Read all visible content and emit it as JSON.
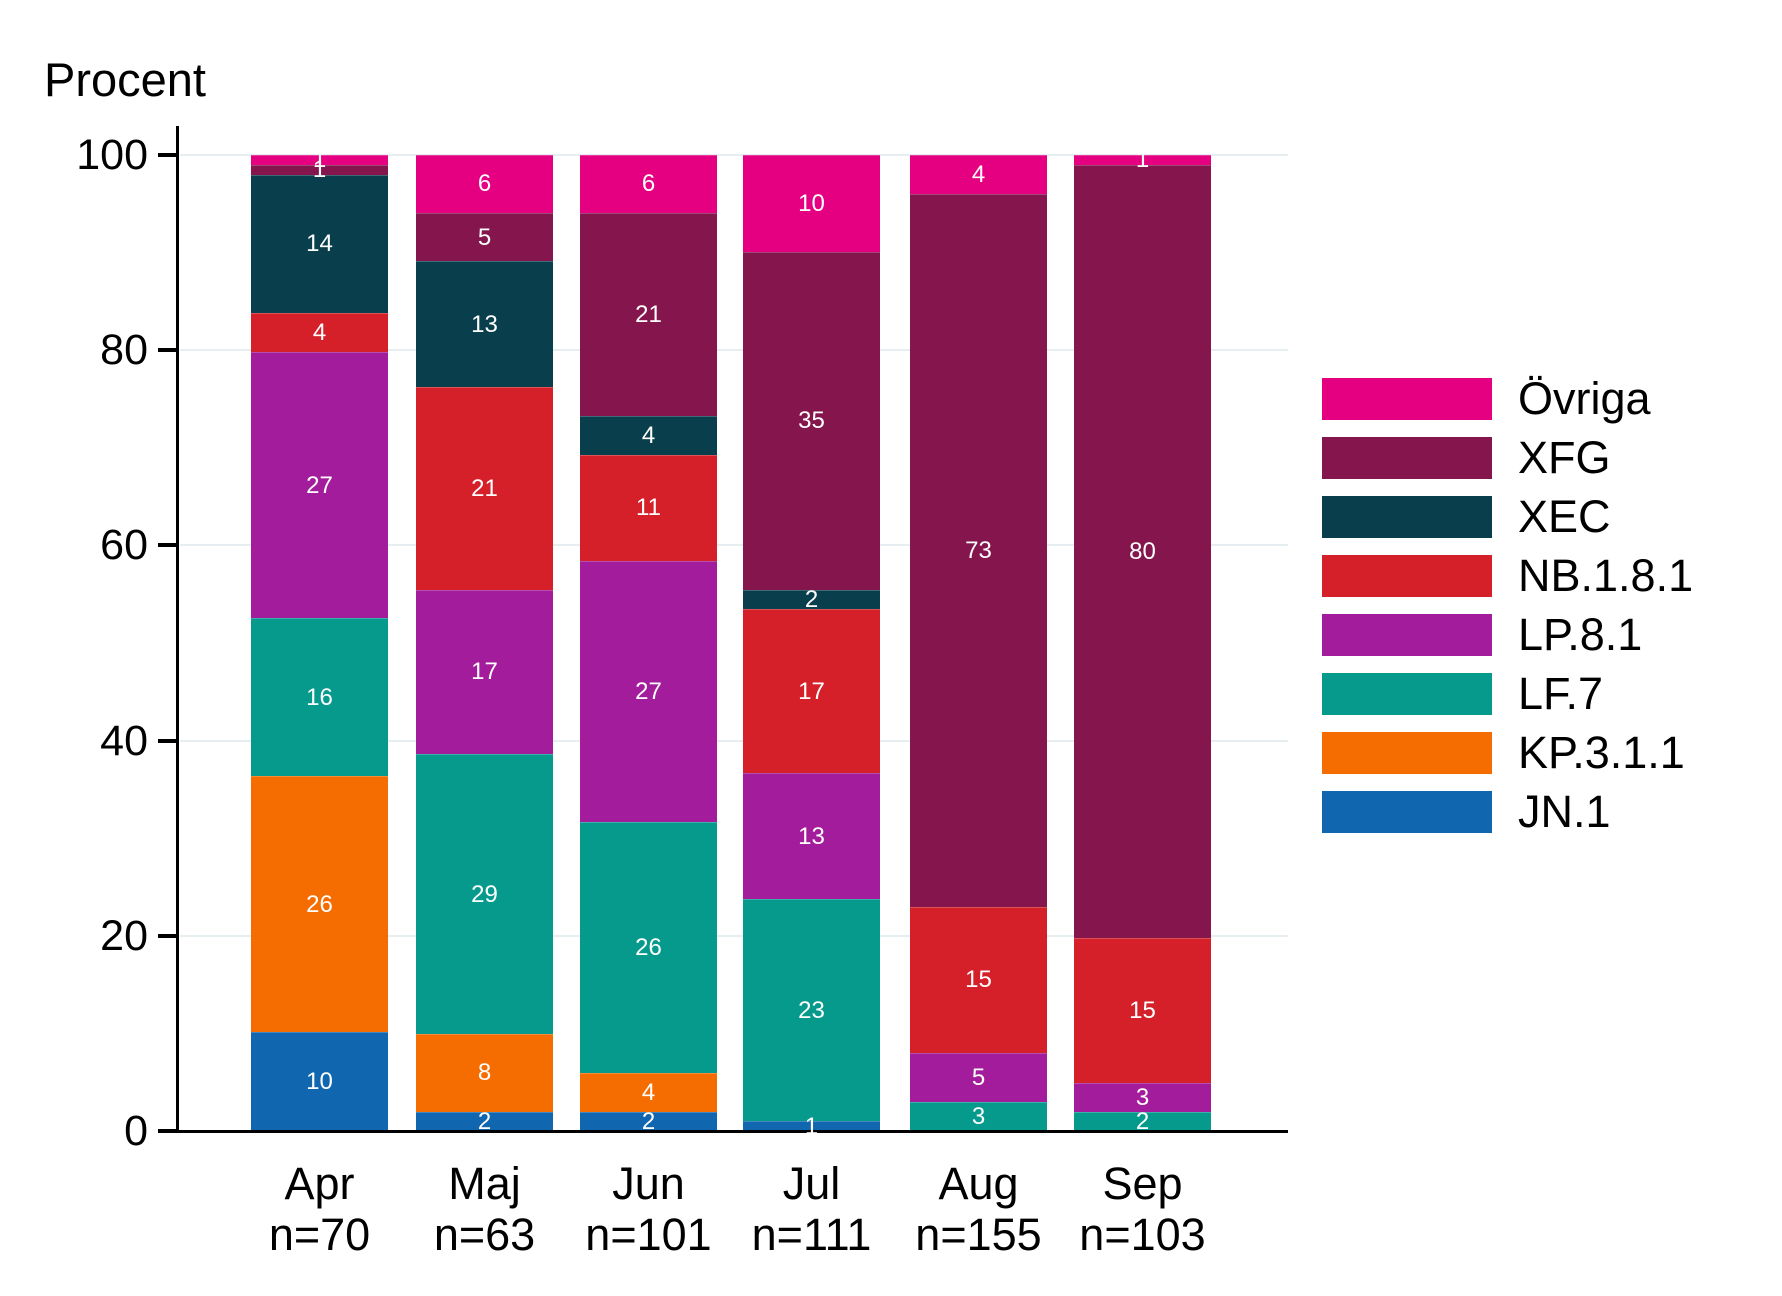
{
  "chart_data": {
    "type": "bar",
    "stacked": true,
    "normalized_to_100": true,
    "title": "Procent",
    "categories": [
      "Apr",
      "Maj",
      "Jun",
      "Jul",
      "Aug",
      "Sep"
    ],
    "sample_sizes": [
      "n=70",
      "n=63",
      "n=101",
      "n=111",
      "n=155",
      "n=103"
    ],
    "yticks": [
      0,
      20,
      40,
      60,
      80,
      100
    ],
    "ylim": [
      0,
      100
    ],
    "grid": true,
    "legend_position": "right",
    "legend_order_top_to_bottom": [
      "Övriga",
      "XFG",
      "XEC",
      "NB.1.8.1",
      "LP.8.1",
      "LF.7",
      "KP.3.1.1",
      "JN.1"
    ],
    "series": [
      {
        "name": "JN.1",
        "color": "#1167AF",
        "values": [
          10,
          2,
          2,
          1,
          0,
          0
        ]
      },
      {
        "name": "KP.3.1.1",
        "color": "#F56C00",
        "values": [
          26,
          8,
          4,
          0,
          0,
          0
        ]
      },
      {
        "name": "LF.7",
        "color": "#069A8D",
        "values": [
          16,
          29,
          26,
          23,
          3,
          2
        ]
      },
      {
        "name": "LP.8.1",
        "color": "#A31C9B",
        "values": [
          27,
          17,
          27,
          13,
          5,
          3
        ]
      },
      {
        "name": "NB.1.8.1",
        "color": "#D5202A",
        "values": [
          4,
          21,
          11,
          17,
          15,
          15
        ]
      },
      {
        "name": "XEC",
        "color": "#093F4D",
        "values": [
          14,
          13,
          4,
          2,
          0,
          0
        ]
      },
      {
        "name": "XFG",
        "color": "#84164D",
        "values": [
          1,
          5,
          21,
          35,
          73,
          80
        ]
      },
      {
        "name": "Övriga",
        "color": "#E50081",
        "values": [
          1,
          6,
          6,
          10,
          4,
          1
        ]
      }
    ],
    "colors": {
      "background": "#FFFFFF",
      "axis": "#000000",
      "grid": "#E7EEF2",
      "bar_value_label": "#FFFFFF"
    }
  }
}
